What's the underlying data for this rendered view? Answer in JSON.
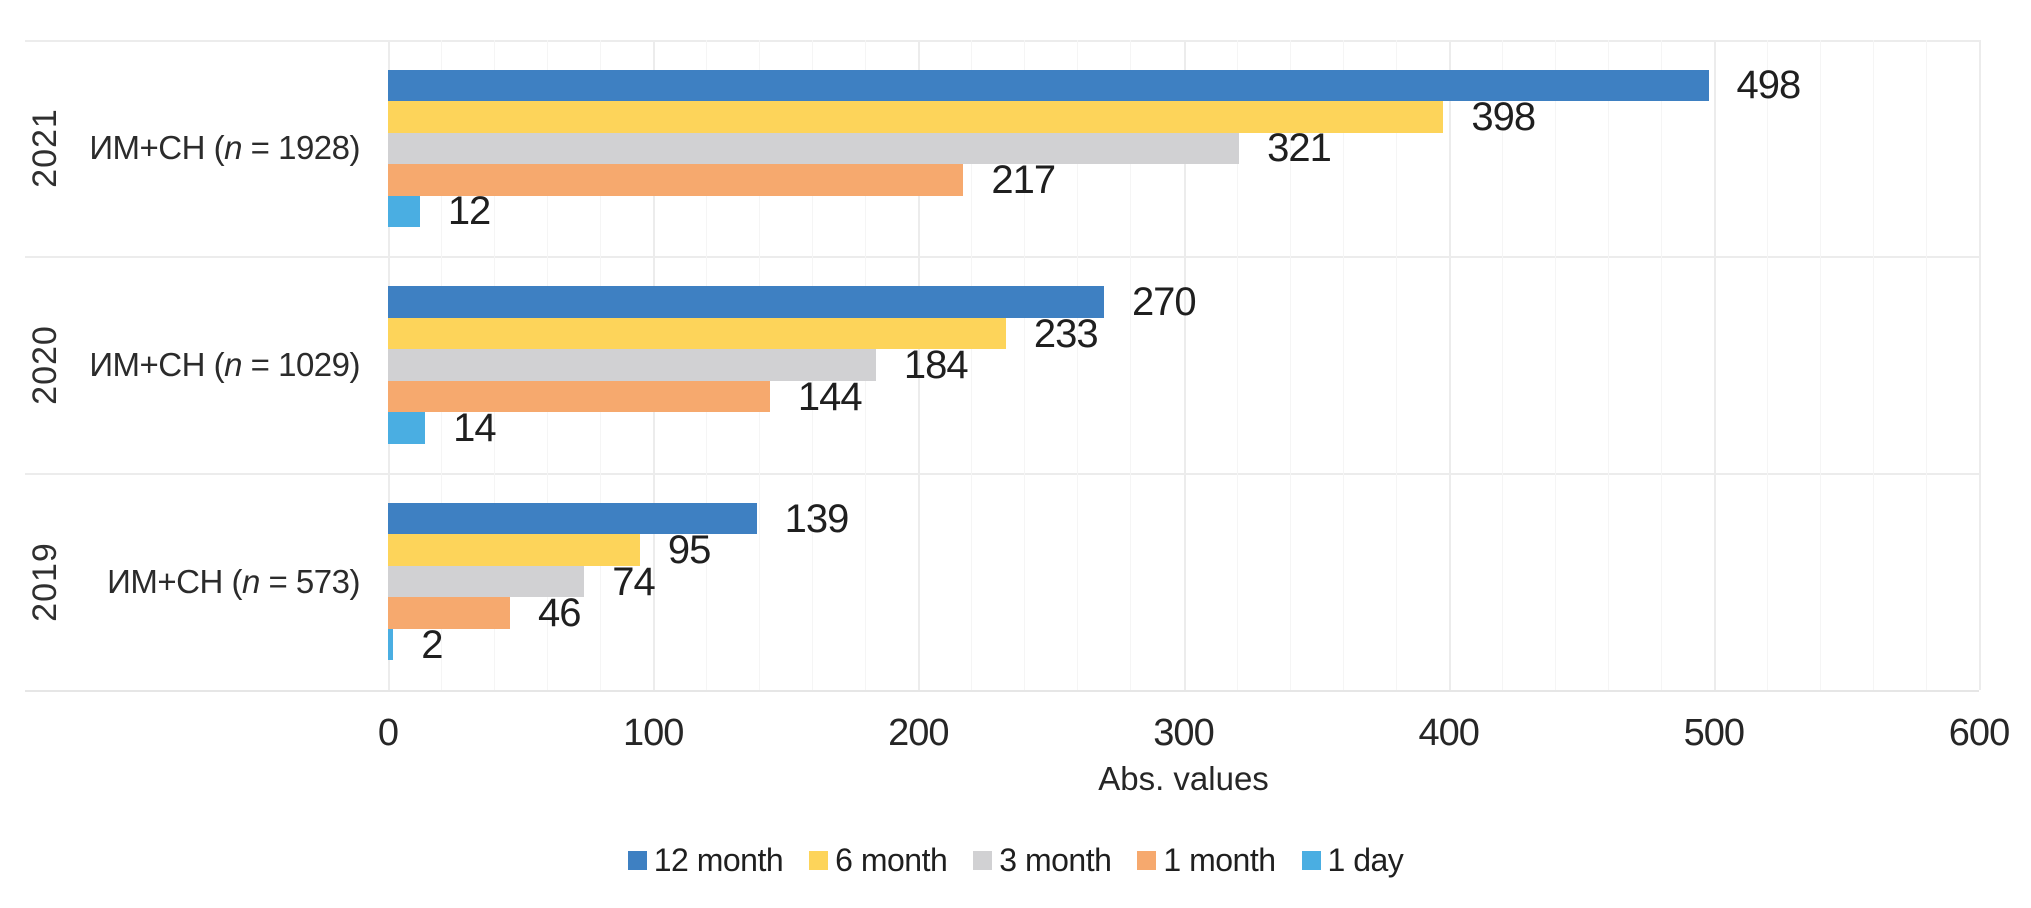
{
  "chart_data": {
    "type": "bar",
    "orientation": "horizontal",
    "xlabel": "Abs. values",
    "xlim": [
      0,
      600
    ],
    "x_ticks": [
      0,
      100,
      200,
      300,
      400,
      500,
      600
    ],
    "minor_gridline_step": 20,
    "major_gridline_step": 100,
    "grid": true,
    "legend_position": "bottom",
    "groups": [
      {
        "year": "2021",
        "label": {
          "pre": "ИМ+СН (",
          "italic": "n",
          "post": " = 1928)"
        },
        "n": 1928
      },
      {
        "year": "2020",
        "label": {
          "pre": "ИМ+СН (",
          "italic": "n",
          "post": " = 1029)"
        },
        "n": 1029
      },
      {
        "year": "2019",
        "label": {
          "pre": "ИМ+СН (",
          "italic": "n",
          "post": " = 573)"
        },
        "n": 573
      }
    ],
    "series": [
      {
        "name": "12 month",
        "color": "#3E80C2",
        "values": [
          498,
          270,
          139
        ]
      },
      {
        "name": "6 month",
        "color": "#FDD45A",
        "values": [
          398,
          233,
          95
        ]
      },
      {
        "name": "3 month",
        "color": "#D1D1D3",
        "values": [
          321,
          184,
          74
        ]
      },
      {
        "name": "1 month",
        "color": "#F6A96E",
        "values": [
          217,
          144,
          46
        ]
      },
      {
        "name": "1 day",
        "color": "#4AAEE2",
        "values": [
          12,
          14,
          2
        ]
      }
    ]
  }
}
